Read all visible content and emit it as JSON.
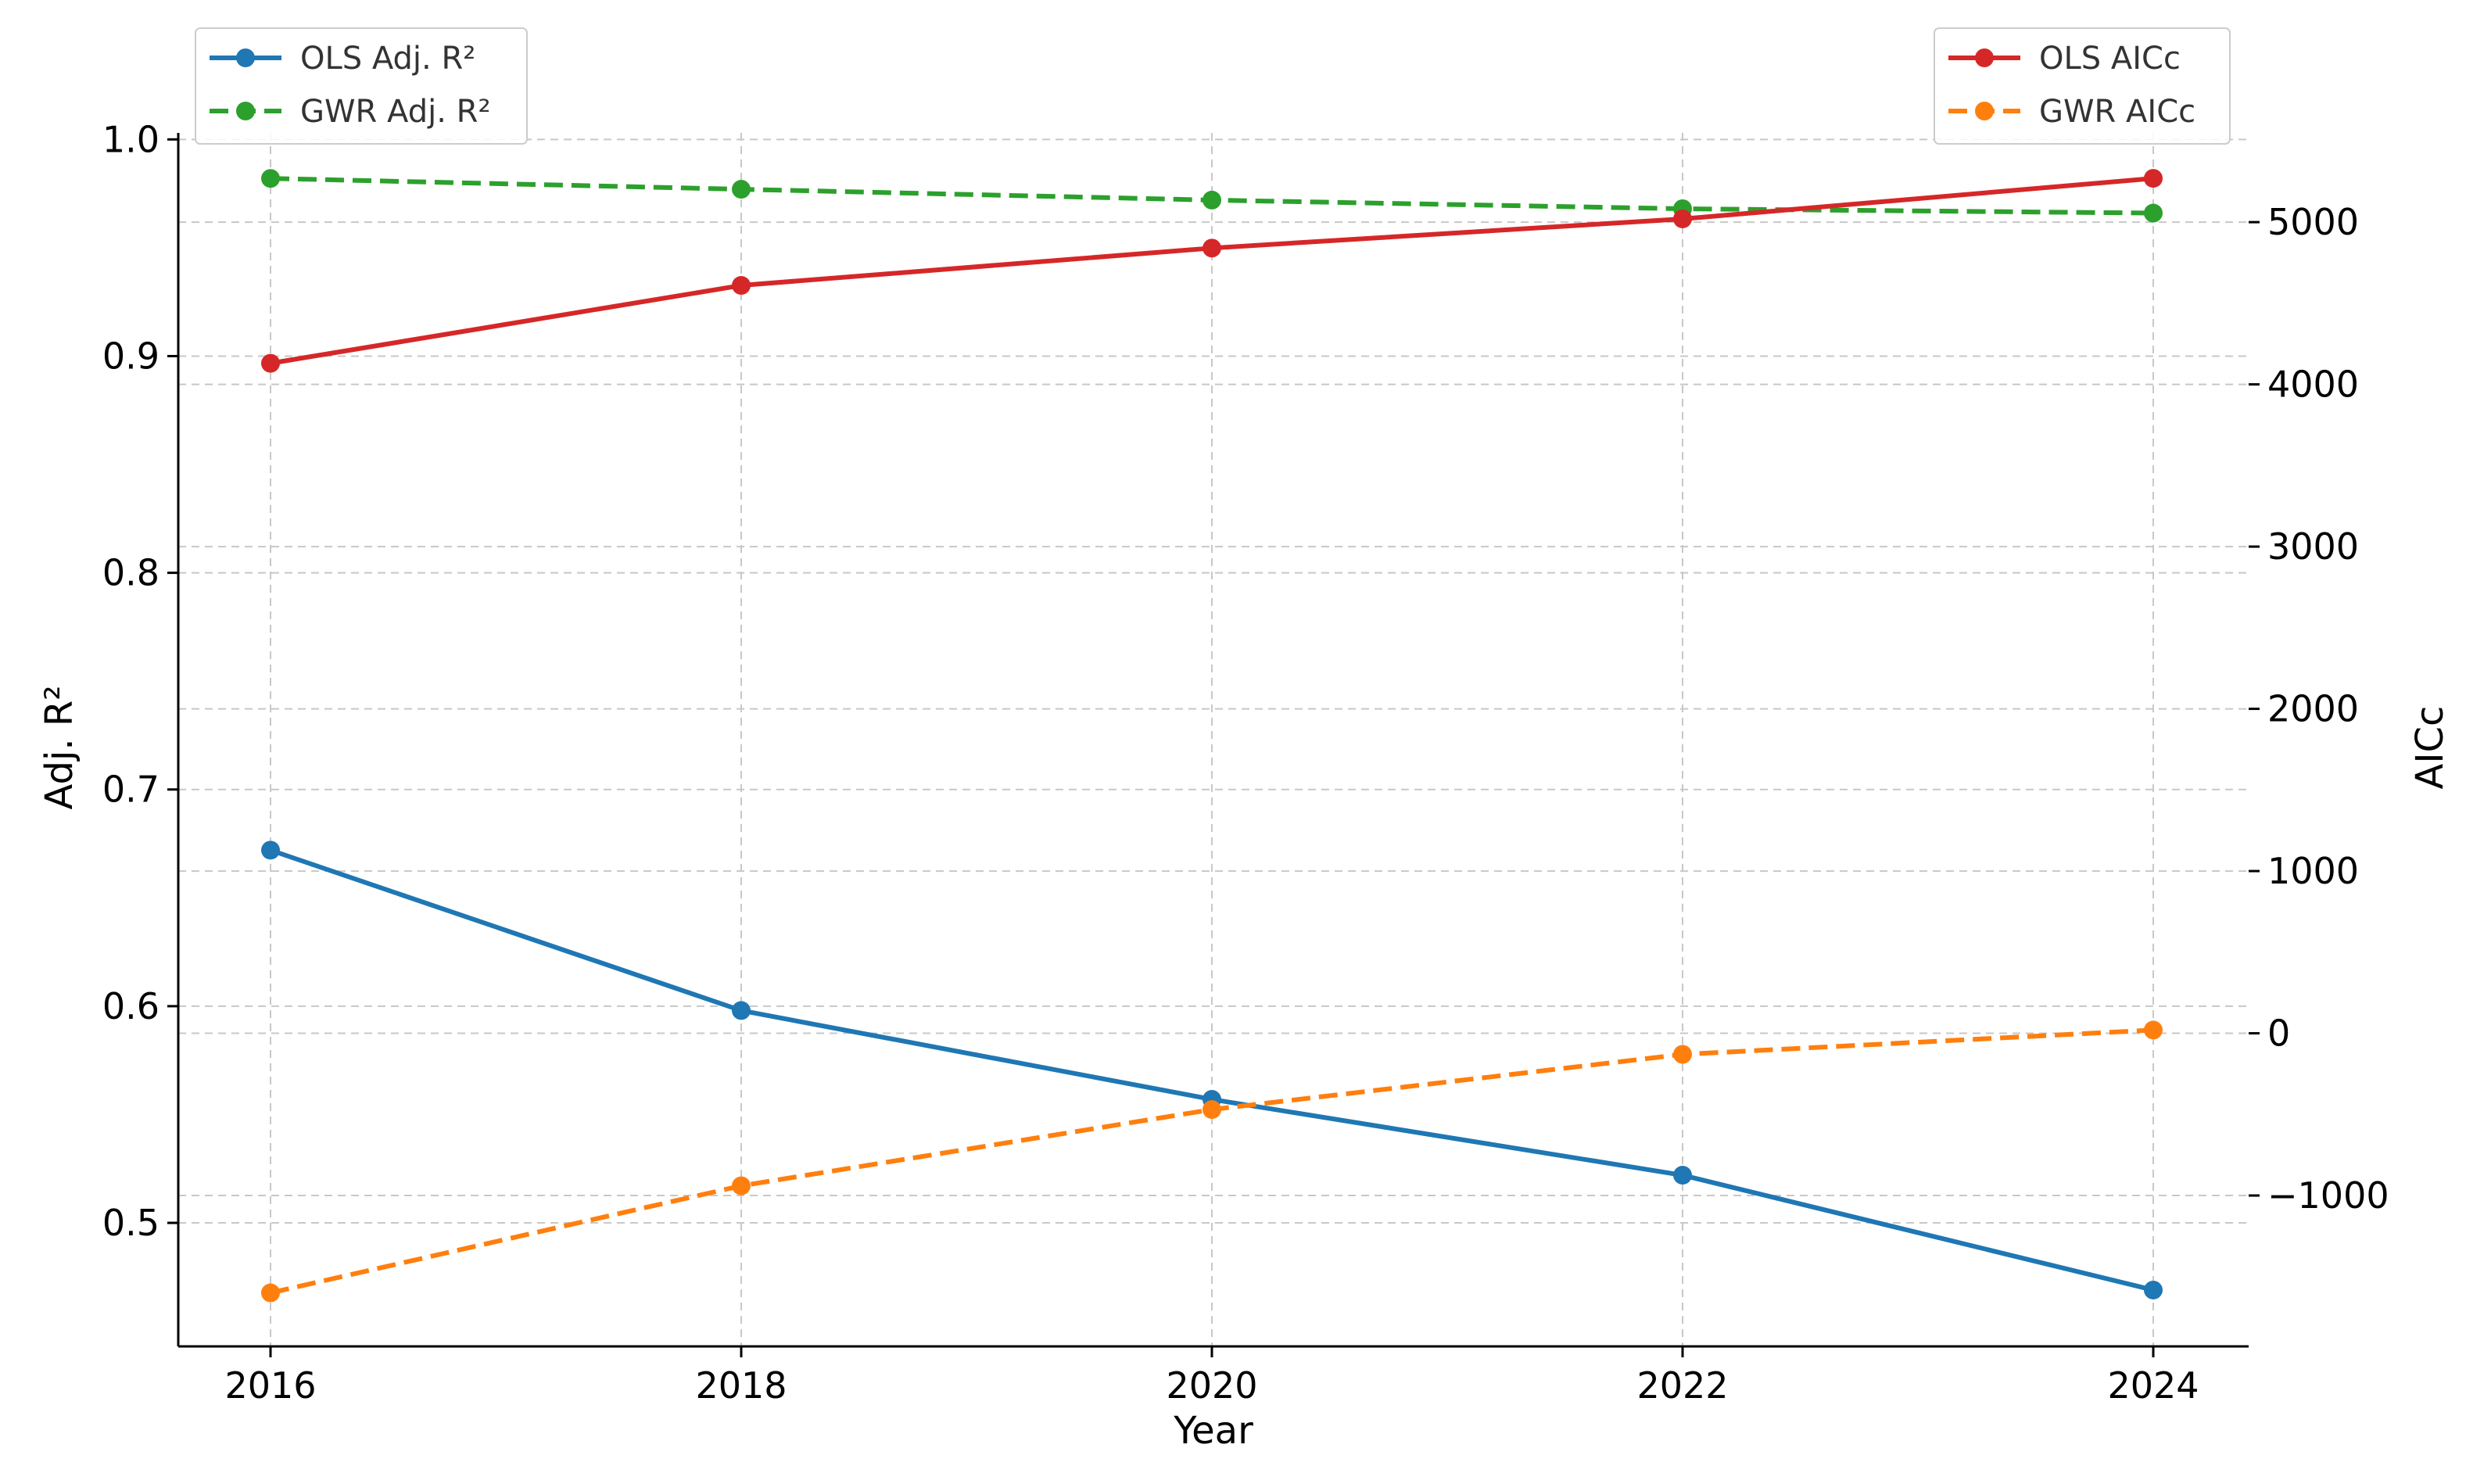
{
  "chart_data": {
    "type": "line",
    "x": [
      "2016",
      "2018",
      "2020",
      "2022",
      "2024"
    ],
    "xlabel": "Year",
    "y_left": {
      "label": "Adj. R²",
      "ticks": [
        "0.5",
        "0.6",
        "0.7",
        "0.8",
        "0.9",
        "1.0"
      ],
      "range": [
        0.443,
        1.003
      ]
    },
    "y_right": {
      "label": "AICc",
      "ticks": [
        "−1000",
        "0",
        "1000",
        "2000",
        "3000",
        "4000",
        "5000"
      ],
      "range": [
        -1930,
        5550
      ]
    },
    "series": [
      {
        "name": "OLS Adj. R²",
        "axis": "left",
        "color": "#1f77b4",
        "style": "solid",
        "values": [
          0.672,
          0.598,
          0.557,
          0.522,
          0.469
        ]
      },
      {
        "name": "GWR Adj. R²",
        "axis": "left",
        "color": "#2ca02c",
        "style": "dashed",
        "values": [
          0.982,
          0.977,
          0.972,
          0.968,
          0.966
        ]
      },
      {
        "name": "OLS AICc",
        "axis": "right",
        "color": "#d62728",
        "style": "solid",
        "values": [
          4130,
          4610,
          4840,
          5020,
          5270
        ]
      },
      {
        "name": "GWR AICc",
        "axis": "right",
        "color": "#ff7f0e",
        "style": "dashed",
        "values": [
          -1600,
          -940,
          -470,
          -130,
          20
        ]
      }
    ],
    "legend_left": {
      "position": "top-left",
      "entries": [
        "OLS Adj. R²",
        "GWR Adj. R²"
      ]
    },
    "legend_right": {
      "position": "top-right",
      "entries": [
        "OLS AICc",
        "GWR AICc"
      ]
    },
    "grid": true
  }
}
